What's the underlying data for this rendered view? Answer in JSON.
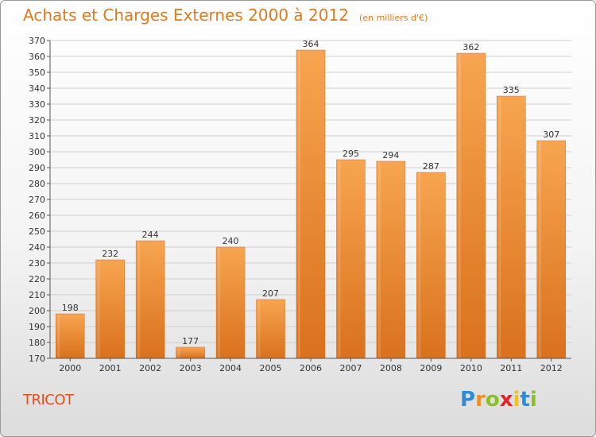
{
  "chart_data": {
    "type": "bar",
    "title": "Achats et Charges Externes 2000 à 2012",
    "subtitle": "(en milliers d'€)",
    "categories": [
      "2000",
      "2001",
      "2002",
      "2003",
      "2004",
      "2005",
      "2006",
      "2007",
      "2008",
      "2009",
      "2010",
      "2011",
      "2012"
    ],
    "values": [
      198,
      232,
      244,
      177,
      240,
      207,
      364,
      295,
      294,
      287,
      362,
      335,
      307
    ],
    "ylim": [
      170,
      370
    ],
    "yticks": [
      170,
      180,
      190,
      200,
      210,
      220,
      230,
      240,
      250,
      260,
      270,
      280,
      290,
      300,
      310,
      320,
      330,
      340,
      350,
      360,
      370
    ],
    "grid": true,
    "bar_color_top": "#f7a550",
    "bar_color_bottom": "#d9711d"
  },
  "commune": "TRICOT",
  "logo": {
    "letters": [
      "P",
      "r",
      "o",
      "x",
      "i",
      "t",
      "i"
    ],
    "colors": [
      "#2e8bd6",
      "#f0901e",
      "#8bbf2a",
      "#e0262b",
      "#f0c419",
      "#2e8bd6",
      "#8bbf2a"
    ]
  }
}
